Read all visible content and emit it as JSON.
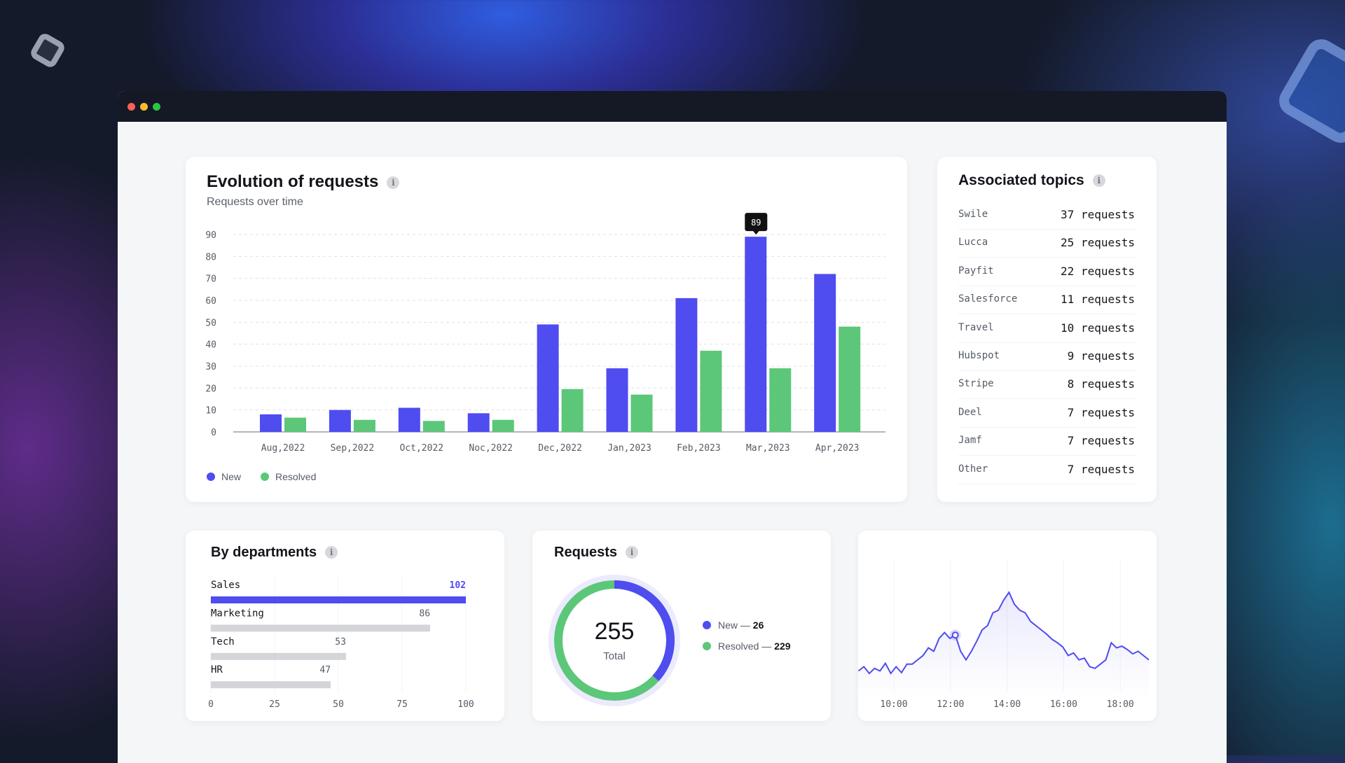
{
  "evolution": {
    "title": "Evolution of requests",
    "subtitle": "Requests over time",
    "info": "i",
    "tooltip": "89",
    "legend": [
      "New",
      "Resolved"
    ]
  },
  "chart_data": [
    {
      "type": "bar",
      "title": "Evolution of requests",
      "subtitle": "Requests over time",
      "categories": [
        "Aug,2022",
        "Sep,2022",
        "Oct,2022",
        "Noc,2022",
        "Dec,2022",
        "Jan,2023",
        "Feb,2023",
        "Mar,2023",
        "Apr,2023"
      ],
      "series": [
        {
          "name": "New",
          "color": "#4f4cf0",
          "values": [
            8,
            10,
            11,
            8.5,
            49,
            29,
            61,
            89,
            72
          ]
        },
        {
          "name": "Resolved",
          "color": "#5cc778",
          "values": [
            6.5,
            5.5,
            5,
            5.5,
            19.5,
            17,
            37,
            29,
            48
          ]
        }
      ],
      "yticks": [
        0,
        10,
        20,
        30,
        40,
        50,
        60,
        70,
        80,
        90
      ],
      "ylim": [
        0,
        90
      ],
      "grid": true,
      "legend": "bottom-left"
    },
    {
      "type": "bar",
      "orientation": "horizontal",
      "title": "By departments",
      "categories": [
        "Sales",
        "Marketing",
        "Tech",
        "HR"
      ],
      "values": [
        102,
        86,
        53,
        47
      ],
      "xticks": [
        0,
        25,
        50,
        75,
        100
      ],
      "xlim": [
        0,
        100
      ]
    },
    {
      "type": "pie",
      "title": "Requests",
      "total": 255,
      "total_label": "Total",
      "slices": [
        {
          "name": "New",
          "value": 26,
          "color": "#4f4cf0"
        },
        {
          "name": "Resolved",
          "value": 229,
          "color": "#5cc778"
        }
      ]
    },
    {
      "type": "area",
      "x_start_hour": 8.75,
      "x_step_hour": 0.19,
      "xticks": [
        "10:00",
        "12:00",
        "14:00",
        "16:00",
        "18:00"
      ],
      "highlight_index": 18,
      "values": [
        7,
        12,
        4,
        10,
        7,
        16,
        4,
        12,
        5,
        15,
        15,
        20,
        25,
        34,
        30,
        45,
        52,
        45,
        49,
        30,
        20,
        30,
        42,
        55,
        60,
        75,
        78,
        90,
        99,
        85,
        78,
        75,
        65,
        60,
        55,
        50,
        44,
        40,
        35,
        25,
        28,
        20,
        22,
        12,
        10,
        15,
        20,
        40,
        34,
        36,
        32,
        27,
        30,
        25,
        20
      ]
    }
  ],
  "topics": {
    "title": "Associated topics",
    "info": "i",
    "unit": "requests",
    "items": [
      {
        "name": "Swile",
        "count": "37"
      },
      {
        "name": "Lucca",
        "count": "25"
      },
      {
        "name": "Payfit",
        "count": "22"
      },
      {
        "name": "Salesforce",
        "count": "11"
      },
      {
        "name": "Travel",
        "count": "10"
      },
      {
        "name": "Hubspot",
        "count": "9"
      },
      {
        "name": "Stripe",
        "count": "8"
      },
      {
        "name": "Deel",
        "count": "7"
      },
      {
        "name": "Jamf",
        "count": "7"
      },
      {
        "name": "Other",
        "count": "7"
      }
    ]
  },
  "departments": {
    "title": "By departments",
    "info": "i"
  },
  "requests": {
    "title": "Requests",
    "info": "i",
    "total": "255",
    "total_label": "Total",
    "new_label": "New — ",
    "new_value": "26",
    "resolved_label": "Resolved — ",
    "resolved_value": "229"
  }
}
